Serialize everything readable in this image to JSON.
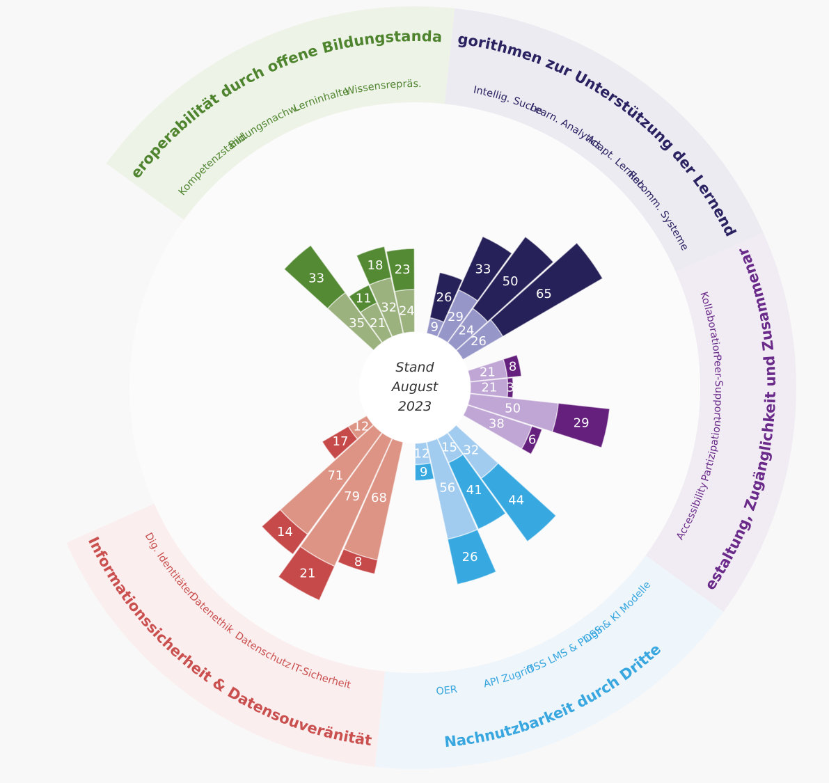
{
  "center": {
    "line1": "Stand",
    "line2": "August",
    "line3": "2023"
  },
  "chart_data": {
    "type": "stacked-radial-bar",
    "categories": [
      {
        "title": "Interoperabilität durch offene Bildungstandards",
        "ring_color": "#eef3e8",
        "text_color": "#4f842e",
        "colors": [
          "#9cb27e",
          "#548a33"
        ],
        "bars": [
          {
            "label": "Kompetenzstand.",
            "values": [
              35,
              33
            ]
          },
          {
            "label": "Bildungsnachw.",
            "values": [
              21,
              11
            ]
          },
          {
            "label": "Lerninhalte",
            "values": [
              32,
              18
            ]
          },
          {
            "label": "Wissensrepräs.",
            "values": [
              24,
              23
            ]
          }
        ]
      },
      {
        "title": "Algorithmen zur Unterstützung der Lernenden",
        "ring_color": "#ecebf1",
        "text_color": "#2b2262",
        "colors": [
          "#9796c9",
          "#272159"
        ],
        "bars": [
          {
            "label": "Intellig. Suche",
            "values": [
              9,
              26
            ]
          },
          {
            "label": "Learn. Analytics",
            "values": [
              29,
              33
            ]
          },
          {
            "label": "Adapt. Lerninh.",
            "values": [
              24,
              50
            ]
          },
          {
            "label": "Recomm. Systeme",
            "values": [
              26,
              65
            ]
          }
        ]
      },
      {
        "title": "Mitgestaltung, Zugänglichkeit und Zusammenarbeit",
        "ring_color": "#f1ecf3",
        "text_color": "#6a2a8a",
        "colors": [
          "#c0a6d5",
          "#651f7d"
        ],
        "bars": [
          {
            "label": "Kollaboration",
            "values": [
              21,
              8
            ]
          },
          {
            "label": "Peer-Support",
            "values": [
              21,
              3
            ]
          },
          {
            "label": "Partizipation",
            "values": [
              50,
              29
            ]
          },
          {
            "label": "Accessibility",
            "values": [
              38,
              6
            ]
          }
        ]
      },
      {
        "title": "Nachnutzbarkeit durch Dritte",
        "ring_color": "#eef5fb",
        "text_color": "#38a6df",
        "colors": [
          "#a2ccef",
          "#37a9e0"
        ],
        "bars": [
          {
            "label": "OSS & KI Modelle",
            "values": [
              32,
              44
            ]
          },
          {
            "label": "OSS LMS & Plugin",
            "values": [
              15,
              41
            ]
          },
          {
            "label": "API Zugriff",
            "values": [
              56,
              26
            ]
          },
          {
            "label": "OER",
            "values": [
              12,
              9
            ]
          }
        ]
      },
      {
        "title": "Informationssicherheit & Datensouveränität",
        "ring_color": "#fbeeee",
        "text_color": "#c9504f",
        "colors": [
          "#dd9485",
          "#c64a4a"
        ],
        "bars": [
          {
            "label": "IT-Sicherheit",
            "values": [
              68,
              8
            ]
          },
          {
            "label": "Datenschutz",
            "values": [
              79,
              21
            ]
          },
          {
            "label": "Datenethik",
            "values": [
              71,
              14
            ]
          },
          {
            "label": "Dig. Identitäten",
            "values": [
              12,
              17
            ]
          }
        ]
      }
    ]
  }
}
